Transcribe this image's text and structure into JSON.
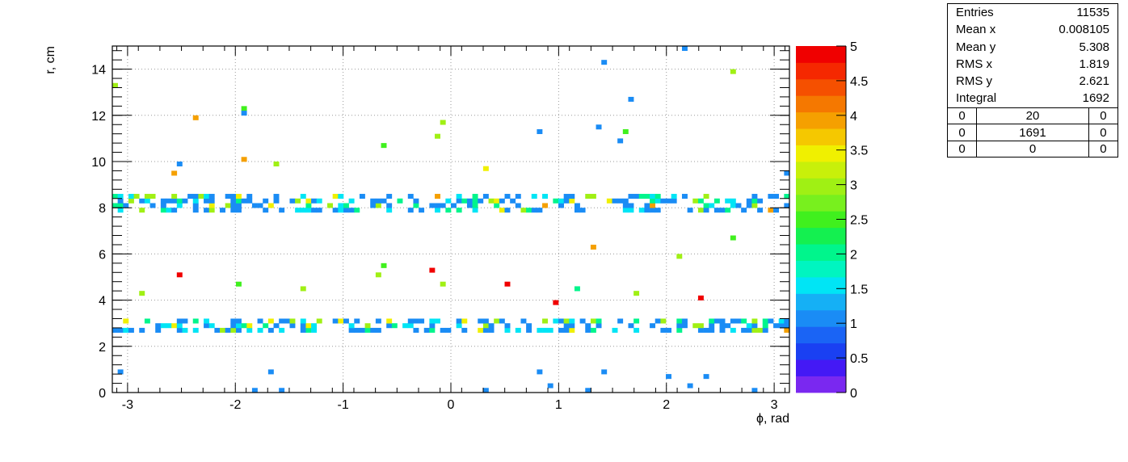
{
  "chart_data": {
    "type": "heatmap",
    "xlabel": "ϕ, rad",
    "ylabel": "r, cm",
    "xlim": [
      -3.1416,
      3.1416
    ],
    "ylim": [
      0,
      15
    ],
    "x_ticks": [
      "-3",
      "-2",
      "-1",
      "0",
      "1",
      "2",
      "3"
    ],
    "y_ticks": [
      "0",
      "2",
      "4",
      "6",
      "8",
      "10",
      "12",
      "14"
    ],
    "z_range": [
      0,
      5
    ],
    "z_ticks": [
      "0",
      "0.5",
      "1",
      "1.5",
      "2",
      "2.5",
      "3",
      "3.5",
      "4",
      "4.5",
      "5"
    ],
    "grid": true,
    "bands": [
      {
        "r_min": 7.8,
        "r_max": 8.6,
        "density": "high"
      },
      {
        "r_min": 2.6,
        "r_max": 3.2,
        "density": "high"
      }
    ],
    "points": [
      {
        "x": 1.42,
        "y": 14.3,
        "z": 1
      },
      {
        "x": 2.17,
        "y": 14.9,
        "z": 1
      },
      {
        "x": -3.1,
        "y": 13.3,
        "z": 3
      },
      {
        "x": 2.62,
        "y": 13.9,
        "z": 3
      },
      {
        "x": -2.37,
        "y": 11.9,
        "z": 4
      },
      {
        "x": -1.91,
        "y": 12.3,
        "z": 2.5
      },
      {
        "x": -1.91,
        "y": 12.1,
        "z": 1
      },
      {
        "x": 1.66,
        "y": 12.7,
        "z": 1
      },
      {
        "x": -0.08,
        "y": 11.7,
        "z": 3
      },
      {
        "x": -0.12,
        "y": 11.1,
        "z": 3
      },
      {
        "x": 0.82,
        "y": 11.3,
        "z": 1
      },
      {
        "x": 1.38,
        "y": 11.5,
        "z": 1
      },
      {
        "x": 1.6,
        "y": 11.3,
        "z": 2.5
      },
      {
        "x": 1.56,
        "y": 10.9,
        "z": 1
      },
      {
        "x": -0.61,
        "y": 10.7,
        "z": 2.5
      },
      {
        "x": -1.91,
        "y": 10.1,
        "z": 4
      },
      {
        "x": -1.61,
        "y": 9.9,
        "z": 3
      },
      {
        "x": -2.54,
        "y": 9.8,
        "z": 1
      },
      {
        "x": -2.58,
        "y": 9.5,
        "z": 4
      },
      {
        "x": 0.33,
        "y": 9.7,
        "z": 3.5
      },
      {
        "x": 3.1,
        "y": 9.5,
        "z": 1
      },
      {
        "x": -2.52,
        "y": 5.1,
        "z": 5
      },
      {
        "x": -0.18,
        "y": 5.3,
        "z": 5
      },
      {
        "x": 0.54,
        "y": 4.7,
        "z": 5
      },
      {
        "x": 0.99,
        "y": 3.9,
        "z": 5
      },
      {
        "x": 2.32,
        "y": 4.1,
        "z": 5
      },
      {
        "x": 1.34,
        "y": 6.3,
        "z": 4
      },
      {
        "x": 2.1,
        "y": 5.9,
        "z": 3
      },
      {
        "x": 2.62,
        "y": 6.7,
        "z": 2.5
      },
      {
        "x": -0.62,
        "y": 5.5,
        "z": 2.5
      },
      {
        "x": -0.67,
        "y": 5.1,
        "z": 3
      },
      {
        "x": -0.08,
        "y": 4.7,
        "z": 3
      },
      {
        "x": 1.72,
        "y": 4.3,
        "z": 3
      },
      {
        "x": -2.88,
        "y": 4.3,
        "z": 3
      },
      {
        "x": -1.99,
        "y": 4.7,
        "z": 2.5
      },
      {
        "x": -1.35,
        "y": 4.5,
        "z": 3
      },
      {
        "x": 1.19,
        "y": 4.5,
        "z": 2
      },
      {
        "x": -3.05,
        "y": 0.9,
        "z": 1
      },
      {
        "x": -1.8,
        "y": 0.1,
        "z": 1
      },
      {
        "x": -1.68,
        "y": 0.9,
        "z": 1
      },
      {
        "x": -1.55,
        "y": 0.1,
        "z": 1
      },
      {
        "x": 0.33,
        "y": 0.1,
        "z": 1
      },
      {
        "x": 0.8,
        "y": 0.9,
        "z": 1
      },
      {
        "x": 0.94,
        "y": 0.3,
        "z": 1
      },
      {
        "x": 1.28,
        "y": 0.1,
        "z": 1
      },
      {
        "x": 1.44,
        "y": 0.9,
        "z": 1
      },
      {
        "x": 2.0,
        "y": 0.7,
        "z": 1
      },
      {
        "x": 2.24,
        "y": 0.3,
        "z": 1
      },
      {
        "x": 2.38,
        "y": 0.7,
        "z": 1
      },
      {
        "x": 2.84,
        "y": 0.1,
        "z": 1
      }
    ]
  },
  "stats": {
    "rows": [
      {
        "label": "Entries",
        "value": "11535"
      },
      {
        "label": "Mean x",
        "value": "0.008105"
      },
      {
        "label": "Mean y",
        "value": "5.308"
      },
      {
        "label": "RMS x",
        "value": "1.819"
      },
      {
        "label": "RMS y",
        "value": "2.621"
      },
      {
        "label": "Integral",
        "value": "1692"
      }
    ],
    "grid": [
      [
        "0",
        "20",
        "0"
      ],
      [
        "0",
        "1691",
        "0"
      ],
      [
        "0",
        "0",
        "0"
      ]
    ]
  }
}
